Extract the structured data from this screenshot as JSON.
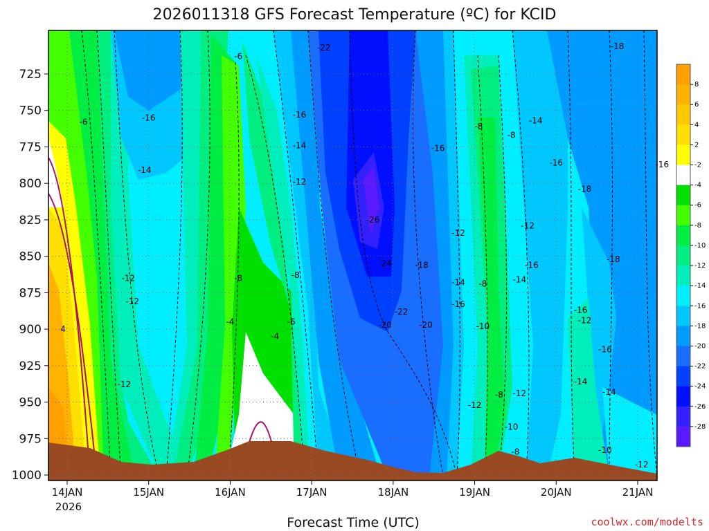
{
  "chart_data": {
    "type": "heatmap",
    "title": "2026011318 GFS Forecast Temperature (ºC) for KCID",
    "xlabel": "Forecast Time (UTC)",
    "credit": "coolwx.com/modelts",
    "y_ticks": [
      725,
      750,
      775,
      800,
      825,
      850,
      875,
      900,
      925,
      950,
      975,
      1000
    ],
    "ylim": [
      1000,
      700
    ],
    "x_ticks": [
      "14JAN",
      "15JAN",
      "16JAN",
      "17JAN",
      "18JAN",
      "19JAN",
      "20JAN",
      "21JAN"
    ],
    "x_tick_sublabel": "2026",
    "colorbar": {
      "labels": [
        8,
        6,
        4,
        2,
        -2,
        -4,
        -6,
        -8,
        -10,
        -12,
        -14,
        -16,
        -18,
        -20,
        -22,
        -24,
        -26,
        -28
      ],
      "colors": [
        "#ff9f00",
        "#ffb300",
        "#ffc800",
        "#ffdf00",
        "#ffff00",
        "#ffffff",
        "#00e000",
        "#44ff00",
        "#00ee44",
        "#00ee80",
        "#00eebb",
        "#00eeff",
        "#00c8ff",
        "#009bff",
        "#1a6eff",
        "#0040ff",
        "#0010ff",
        "#3320ff",
        "#5a1aff"
      ]
    },
    "contour_labels": [
      {
        "time": 13.95,
        "p": 900,
        "v": "4"
      },
      {
        "time": 14.2,
        "p": 758,
        "v": "-6"
      },
      {
        "time": 14.7,
        "p": 938,
        "v": "-12"
      },
      {
        "time": 14.75,
        "p": 865,
        "v": "-12"
      },
      {
        "time": 14.8,
        "p": 881,
        "v": "-12"
      },
      {
        "time": 15.0,
        "p": 755,
        "v": "-16"
      },
      {
        "time": 14.95,
        "p": 791,
        "v": "-14"
      },
      {
        "time": 16.1,
        "p": 713,
        "v": "-6"
      },
      {
        "time": 16.0,
        "p": 895,
        "v": "-4"
      },
      {
        "time": 16.1,
        "p": 865,
        "v": "-8"
      },
      {
        "time": 16.55,
        "p": 905,
        "v": "-4"
      },
      {
        "time": 16.75,
        "p": 895,
        "v": "-6"
      },
      {
        "time": 16.85,
        "p": 753,
        "v": "-16"
      },
      {
        "time": 16.85,
        "p": 774,
        "v": "-14"
      },
      {
        "time": 16.85,
        "p": 799,
        "v": "-12"
      },
      {
        "time": 16.8,
        "p": 863,
        "v": "-8"
      },
      {
        "time": 17.15,
        "p": 707,
        "v": "-22"
      },
      {
        "time": 17.75,
        "p": 825,
        "v": "-26"
      },
      {
        "time": 17.9,
        "p": 855,
        "v": "-24"
      },
      {
        "time": 18.1,
        "p": 888,
        "v": "-22"
      },
      {
        "time": 17.9,
        "p": 897,
        "v": "-20"
      },
      {
        "time": 18.4,
        "p": 897,
        "v": "-20"
      },
      {
        "time": 18.35,
        "p": 856,
        "v": "-18"
      },
      {
        "time": 18.55,
        "p": 776,
        "v": "-16"
      },
      {
        "time": 18.8,
        "p": 834,
        "v": "-12"
      },
      {
        "time": 18.8,
        "p": 868,
        "v": "-14"
      },
      {
        "time": 18.8,
        "p": 883,
        "v": "-16"
      },
      {
        "time": 19.05,
        "p": 761,
        "v": "-8"
      },
      {
        "time": 19.1,
        "p": 869,
        "v": "-8"
      },
      {
        "time": 19.1,
        "p": 898,
        "v": "-10"
      },
      {
        "time": 19.0,
        "p": 952,
        "v": "-12"
      },
      {
        "time": 19.3,
        "p": 945,
        "v": "-8"
      },
      {
        "time": 19.55,
        "p": 944,
        "v": "-12"
      },
      {
        "time": 19.45,
        "p": 967,
        "v": "-10"
      },
      {
        "time": 19.5,
        "p": 984,
        "v": "-8"
      },
      {
        "time": 19.45,
        "p": 767,
        "v": "-8"
      },
      {
        "time": 19.75,
        "p": 757,
        "v": "-14"
      },
      {
        "time": 19.65,
        "p": 829,
        "v": "-12"
      },
      {
        "time": 19.7,
        "p": 856,
        "v": "-16"
      },
      {
        "time": 19.55,
        "p": 866,
        "v": "-14"
      },
      {
        "time": 20.0,
        "p": 786,
        "v": "-16"
      },
      {
        "time": 20.35,
        "p": 804,
        "v": "-18"
      },
      {
        "time": 20.75,
        "p": 706,
        "v": "-18"
      },
      {
        "time": 20.7,
        "p": 852,
        "v": "-18"
      },
      {
        "time": 20.3,
        "p": 887,
        "v": "-16"
      },
      {
        "time": 20.35,
        "p": 894,
        "v": "-12"
      },
      {
        "time": 20.6,
        "p": 914,
        "v": "-16"
      },
      {
        "time": 20.3,
        "p": 936,
        "v": "-14"
      },
      {
        "time": 20.65,
        "p": 943,
        "v": "-14"
      },
      {
        "time": 20.6,
        "p": 983,
        "v": "-10"
      },
      {
        "time": 21.05,
        "p": 993,
        "v": "-12"
      },
      {
        "time": 21.3,
        "p": 787,
        "v": "-16"
      }
    ]
  }
}
